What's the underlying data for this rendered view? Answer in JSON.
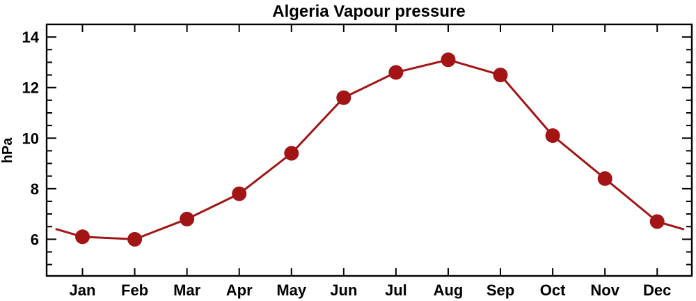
{
  "figure": {
    "background": "#ffffff",
    "axis_color": "#000000"
  },
  "chart_data": {
    "type": "line",
    "title": "Algeria Vapour pressure",
    "ylabel": "hPa",
    "xlabel": "",
    "legend": "none",
    "grid": false,
    "categories": [
      "Jan",
      "Feb",
      "Mar",
      "Apr",
      "May",
      "Jun",
      "Jul",
      "Aug",
      "Sep",
      "Oct",
      "Nov",
      "Dec"
    ],
    "values": [
      6.1,
      6.0,
      6.8,
      7.8,
      9.4,
      11.6,
      12.6,
      13.1,
      12.5,
      10.1,
      8.4,
      6.7
    ],
    "edge_extension": {
      "description": "line continues half a month beyond Jan and Dec to the wrap-around midpoint value",
      "start_offset_months": -0.5,
      "start_value": 6.4,
      "end_offset_months": 0.5,
      "end_value": 6.4
    },
    "ylim": [
      4.55,
      14.5
    ],
    "yticks_major": [
      6,
      8,
      10,
      12,
      14
    ],
    "ytick_labels": [
      "6",
      "8",
      "10",
      "12",
      "14"
    ],
    "ytick_minor_step": 0.5,
    "line_color": "#A31414",
    "marker_color": "#A31414",
    "marker_shape": "circle",
    "marker_radius": 10.5
  }
}
